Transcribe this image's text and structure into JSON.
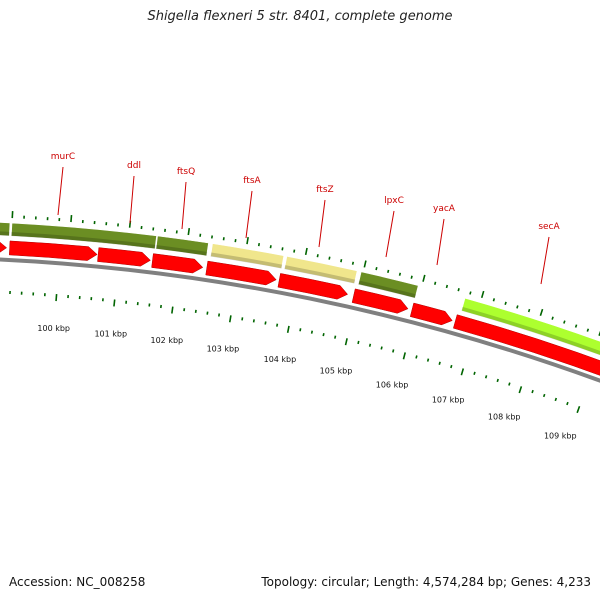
{
  "title": "Shigella flexneri 5 str. 8401, complete genome",
  "footer": {
    "accession": "Accession: NC_008258",
    "stats": "Topology: circular; Length: 4,574,284 bp; Genes: 4,233"
  },
  "colors": {
    "forward_dark": "#6b8e23",
    "forward_pale": "#f0e68c",
    "forward_lime": "#adff2f",
    "reverse_red": "#ff0000",
    "backbone": "#808080",
    "tick": "#006400",
    "label": "#cc0000"
  },
  "scale_labels": [
    "100 kbp",
    "101 kbp",
    "102 kbp",
    "103 kbp",
    "104 kbp",
    "105 kbp",
    "106 kbp",
    "107 kbp",
    "108 kbp",
    "109 kbp"
  ],
  "gene_labels": [
    "murC",
    "ddl",
    "ftsQ",
    "ftsA",
    "ftsZ",
    "lpxC",
    "yacA",
    "secA"
  ]
}
